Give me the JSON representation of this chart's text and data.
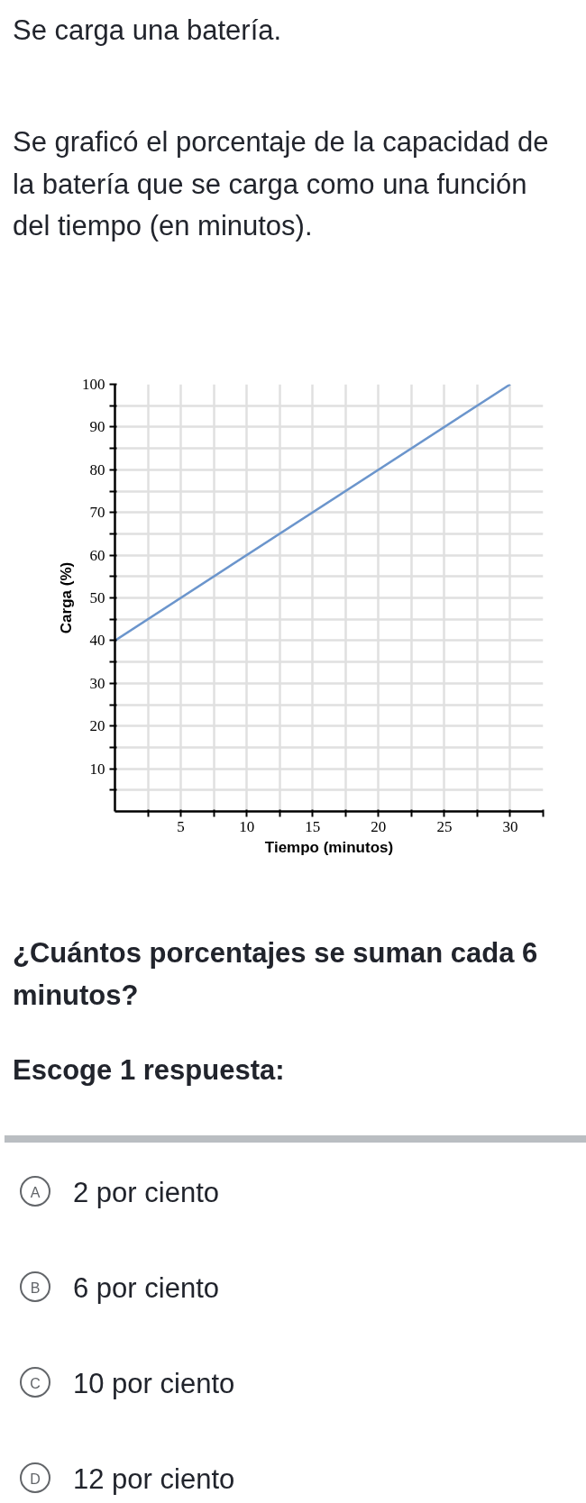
{
  "chart_data": {
    "type": "line",
    "title": "Se carga una batería.",
    "subtitle": "Se graficó el porcentaje de la capacidad de la batería que se carga como una función del tiempo (en minutos).",
    "xlabel": "Tiempo (minutos)",
    "ylabel": "Carga (%)",
    "x": [
      0,
      30
    ],
    "series": [
      {
        "color": "#6b95cc",
        "values": [
          40,
          100
        ]
      }
    ],
    "xlim": [
      0,
      32.5
    ],
    "ylim": [
      0,
      100
    ],
    "xticks": [
      {
        "value": 2.5,
        "label": null
      },
      5,
      {
        "value": 7.5,
        "label": null
      },
      10,
      {
        "value": 12.5,
        "label": null
      },
      15,
      {
        "value": 17.5,
        "label": null
      },
      20,
      {
        "value": 22.5,
        "label": null
      },
      25,
      {
        "value": 27.5,
        "label": null
      },
      30,
      {
        "value": 32.5,
        "label": null
      }
    ],
    "yticks": [
      {
        "value": 5,
        "label": null
      },
      10,
      {
        "value": 15,
        "label": null
      },
      20,
      {
        "value": 25,
        "label": null
      },
      30,
      {
        "value": 35,
        "label": null
      },
      40,
      {
        "value": 45,
        "label": null
      },
      50,
      {
        "value": 55,
        "label": null
      },
      60,
      {
        "value": 65,
        "label": null
      },
      70,
      {
        "value": 75,
        "label": null
      },
      80,
      {
        "value": 85,
        "label": null
      },
      90,
      {
        "value": 95,
        "label": null
      },
      100
    ],
    "grid": true,
    "marker": "none",
    "line_style": "solid",
    "annotations": [
      "¿Cuántos porcentajes se suman cada 6 minutos?",
      "Escoge 1 respuesta:",
      "A",
      "2 por ciento",
      "B",
      "6 por ciento",
      "C",
      "10 por ciento",
      "D",
      "12 por ciento"
    ]
  }
}
